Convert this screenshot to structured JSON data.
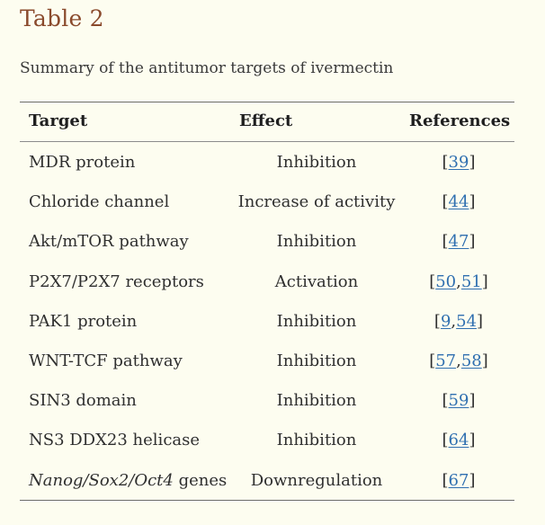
{
  "table": {
    "title": "Table 2",
    "caption": "Summary of the antitumor targets of ivermectin",
    "headers": {
      "target": "Target",
      "effect": "Effect",
      "references": "References"
    },
    "rows": [
      {
        "target_parts": [
          {
            "text": "MDR protein",
            "italic": false
          }
        ],
        "effect": "Inhibition",
        "refs": [
          "39"
        ]
      },
      {
        "target_parts": [
          {
            "text": "Chloride channel",
            "italic": false
          }
        ],
        "effect": "Increase of activity",
        "refs": [
          "44"
        ]
      },
      {
        "target_parts": [
          {
            "text": "Akt/mTOR pathway",
            "italic": false
          }
        ],
        "effect": "Inhibition",
        "refs": [
          "47"
        ]
      },
      {
        "target_parts": [
          {
            "text": "P2X7/P2X7 receptors",
            "italic": false
          }
        ],
        "effect": "Activation",
        "refs": [
          "50",
          "51"
        ]
      },
      {
        "target_parts": [
          {
            "text": "PAK1 protein",
            "italic": false
          }
        ],
        "effect": "Inhibition",
        "refs": [
          "9",
          "54"
        ]
      },
      {
        "target_parts": [
          {
            "text": "WNT-TCF pathway",
            "italic": false
          }
        ],
        "effect": "Inhibition",
        "refs": [
          "57",
          "58"
        ]
      },
      {
        "target_parts": [
          {
            "text": "SIN3 domain",
            "italic": false
          }
        ],
        "effect": "Inhibition",
        "refs": [
          "59"
        ]
      },
      {
        "target_parts": [
          {
            "text": "NS3 DDX23 helicase",
            "italic": false
          }
        ],
        "effect": "Inhibition",
        "refs": [
          "64"
        ]
      },
      {
        "target_parts": [
          {
            "text": "Nanog/Sox2/Oct4",
            "italic": true
          },
          {
            "text": " genes",
            "italic": false
          }
        ],
        "effect": "Downregulation",
        "refs": [
          "67"
        ]
      }
    ]
  }
}
